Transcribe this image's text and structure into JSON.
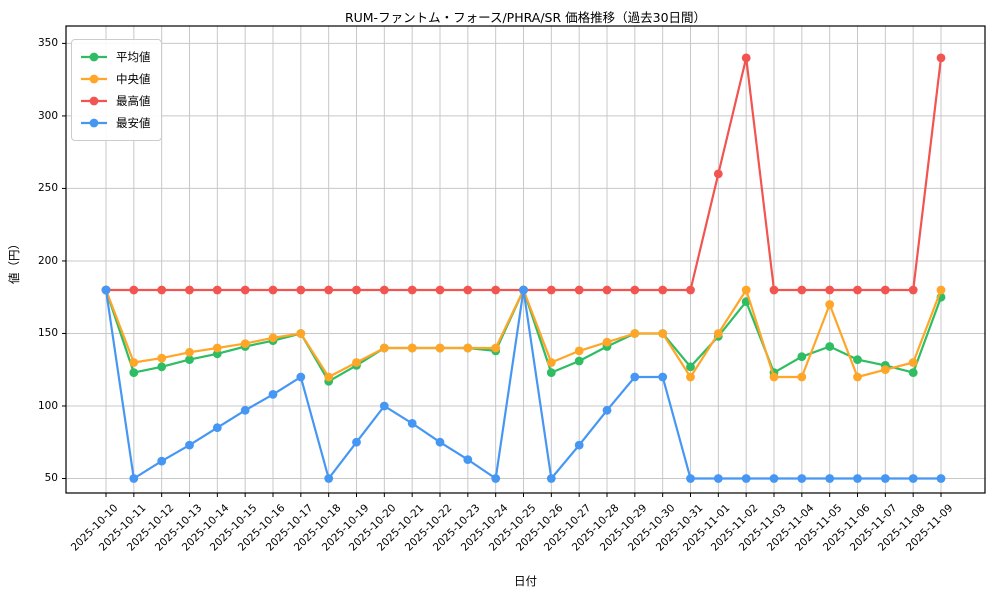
{
  "chart_data": {
    "type": "line",
    "title": "RUM-ファントム・フォース/PHRA/SR 価格推移（過去30日間）",
    "xlabel": "日付",
    "ylabel": "値（円）",
    "grid": true,
    "grid_color": "#c8c8c8",
    "axis_color": "#000000",
    "background_color": "#ffffff",
    "legend_position": "upper left",
    "yticks": [
      50,
      100,
      150,
      200,
      250,
      300,
      350
    ],
    "ylim": [
      40,
      362
    ],
    "x": [
      "2025-10-10",
      "2025-10-11",
      "2025-10-12",
      "2025-10-13",
      "2025-10-14",
      "2025-10-15",
      "2025-10-16",
      "2025-10-17",
      "2025-10-18",
      "2025-10-19",
      "2025-10-20",
      "2025-10-21",
      "2025-10-22",
      "2025-10-23",
      "2025-10-24",
      "2025-10-25",
      "2025-10-26",
      "2025-10-27",
      "2025-10-28",
      "2025-10-29",
      "2025-10-30",
      "2025-10-31",
      "2025-11-01",
      "2025-11-02",
      "2025-11-03",
      "2025-11-04",
      "2025-11-05",
      "2025-11-06",
      "2025-11-07",
      "2025-11-08",
      "2025-11-09"
    ],
    "series": [
      {
        "key": "average",
        "name": "平均値",
        "color": "#2ebd62",
        "values": [
          180,
          123,
          127,
          132,
          136,
          141,
          145,
          150,
          117,
          128,
          140,
          140,
          140,
          140,
          138,
          180,
          123,
          131,
          141,
          150,
          150,
          127,
          148,
          172,
          123,
          134,
          141,
          132,
          128,
          123,
          175
        ]
      },
      {
        "key": "median",
        "name": "中央値",
        "color": "#ffa629",
        "values": [
          180,
          130,
          133,
          137,
          140,
          143,
          147,
          150,
          120,
          130,
          140,
          140,
          140,
          140,
          140,
          180,
          130,
          138,
          144,
          150,
          150,
          120,
          150,
          180,
          120,
          120,
          170,
          120,
          125,
          130,
          180
        ]
      },
      {
        "key": "max",
        "name": "最高値",
        "color": "#f25450",
        "values": [
          180,
          180,
          180,
          180,
          180,
          180,
          180,
          180,
          180,
          180,
          180,
          180,
          180,
          180,
          180,
          180,
          180,
          180,
          180,
          180,
          180,
          180,
          260,
          340,
          180,
          180,
          180,
          180,
          180,
          180,
          340
        ]
      },
      {
        "key": "min",
        "name": "最安値",
        "color": "#4697f4",
        "values": [
          180,
          50,
          62,
          73,
          85,
          97,
          108,
          120,
          50,
          75,
          100,
          88,
          75,
          63,
          50,
          180,
          50,
          73,
          97,
          120,
          120,
          50,
          50,
          50,
          50,
          50,
          50,
          50,
          50,
          50,
          50
        ]
      }
    ]
  }
}
